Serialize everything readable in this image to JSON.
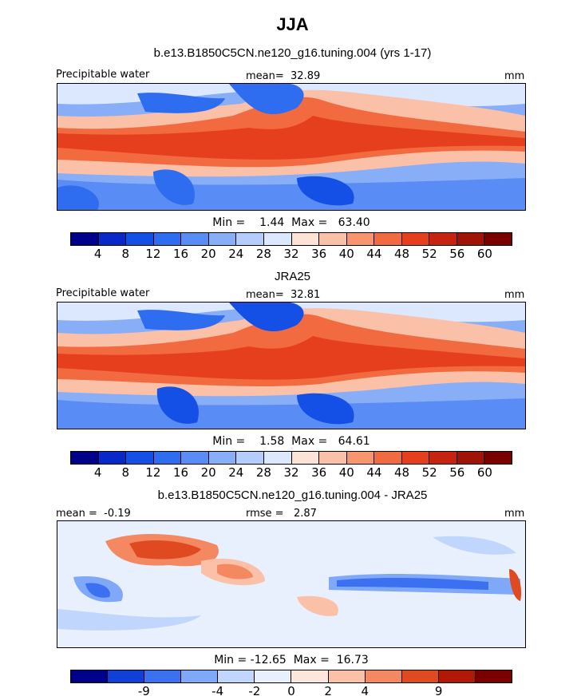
{
  "title": "JJA",
  "panels": [
    {
      "id": "model",
      "subtitle": "b.e13.B1850C5CN.ne120_g16.tuning.004 (yrs 1-17)",
      "left_label": "Precipitable water",
      "center_label": "mean=  32.89",
      "units": "mm",
      "minmax": "Min =    1.44  Max =   63.40",
      "colorbar_ticks": [
        "4",
        "8",
        "12",
        "16",
        "20",
        "24",
        "28",
        "32",
        "36",
        "40",
        "44",
        "48",
        "52",
        "56",
        "60"
      ]
    },
    {
      "id": "obs",
      "subtitle": "JRA25",
      "left_label": "Precipitable water",
      "center_label": "mean=  32.81",
      "units": "mm",
      "minmax": "Min =    1.58  Max =   64.61",
      "colorbar_ticks": [
        "4",
        "8",
        "12",
        "16",
        "20",
        "24",
        "28",
        "32",
        "36",
        "40",
        "44",
        "48",
        "52",
        "56",
        "60"
      ]
    },
    {
      "id": "diff",
      "subtitle": "b.e13.B1850C5CN.ne120_g16.tuning.004 - JRA25",
      "left_label": "mean =  -0.19",
      "center_label": "rmse =   2.87",
      "units": "mm",
      "minmax": "Min = -12.65  Max =  16.73",
      "colorbar_ticks": [
        "-9",
        "-4",
        "-2",
        "0",
        "2",
        "4",
        "9"
      ]
    }
  ],
  "chart_data": [
    {
      "type": "heatmap",
      "title": "b.e13.B1850C5CN.ne120_g16.tuning.004 (yrs 1-17)",
      "variable": "Precipitable water",
      "units": "mm",
      "mean": 32.89,
      "min": 1.44,
      "max": 63.4,
      "levels": [
        4,
        8,
        12,
        16,
        20,
        24,
        28,
        32,
        36,
        40,
        44,
        48,
        52,
        56,
        60
      ]
    },
    {
      "type": "heatmap",
      "title": "JRA25",
      "variable": "Precipitable water",
      "units": "mm",
      "mean": 32.81,
      "min": 1.58,
      "max": 64.61,
      "levels": [
        4,
        8,
        12,
        16,
        20,
        24,
        28,
        32,
        36,
        40,
        44,
        48,
        52,
        56,
        60
      ]
    },
    {
      "type": "heatmap",
      "title": "b.e13.B1850C5CN.ne120_g16.tuning.004 - JRA25",
      "units": "mm",
      "mean": -0.19,
      "rmse": 2.87,
      "min": -12.65,
      "max": 16.73,
      "levels": [
        -9,
        -4,
        -2,
        0,
        2,
        4,
        9
      ]
    }
  ],
  "colors": {
    "abs_scale": [
      "#00008b",
      "#0a28c8",
      "#1450e6",
      "#2e6cf0",
      "#5a8cf5",
      "#88aef8",
      "#b4cdfb",
      "#dce8fd",
      "#fde2d6",
      "#fbc0a8",
      "#f7966e",
      "#f26a40",
      "#e63f1e",
      "#c42410",
      "#a01408",
      "#7a0000"
    ],
    "diff_scale": [
      "#00008b",
      "#1040d8",
      "#3b70f0",
      "#80a8f8",
      "#c0d6fc",
      "#e8f0fe",
      "#fde6dc",
      "#fbc0a8",
      "#f48860",
      "#e04a20",
      "#b01808",
      "#7a0000"
    ]
  }
}
